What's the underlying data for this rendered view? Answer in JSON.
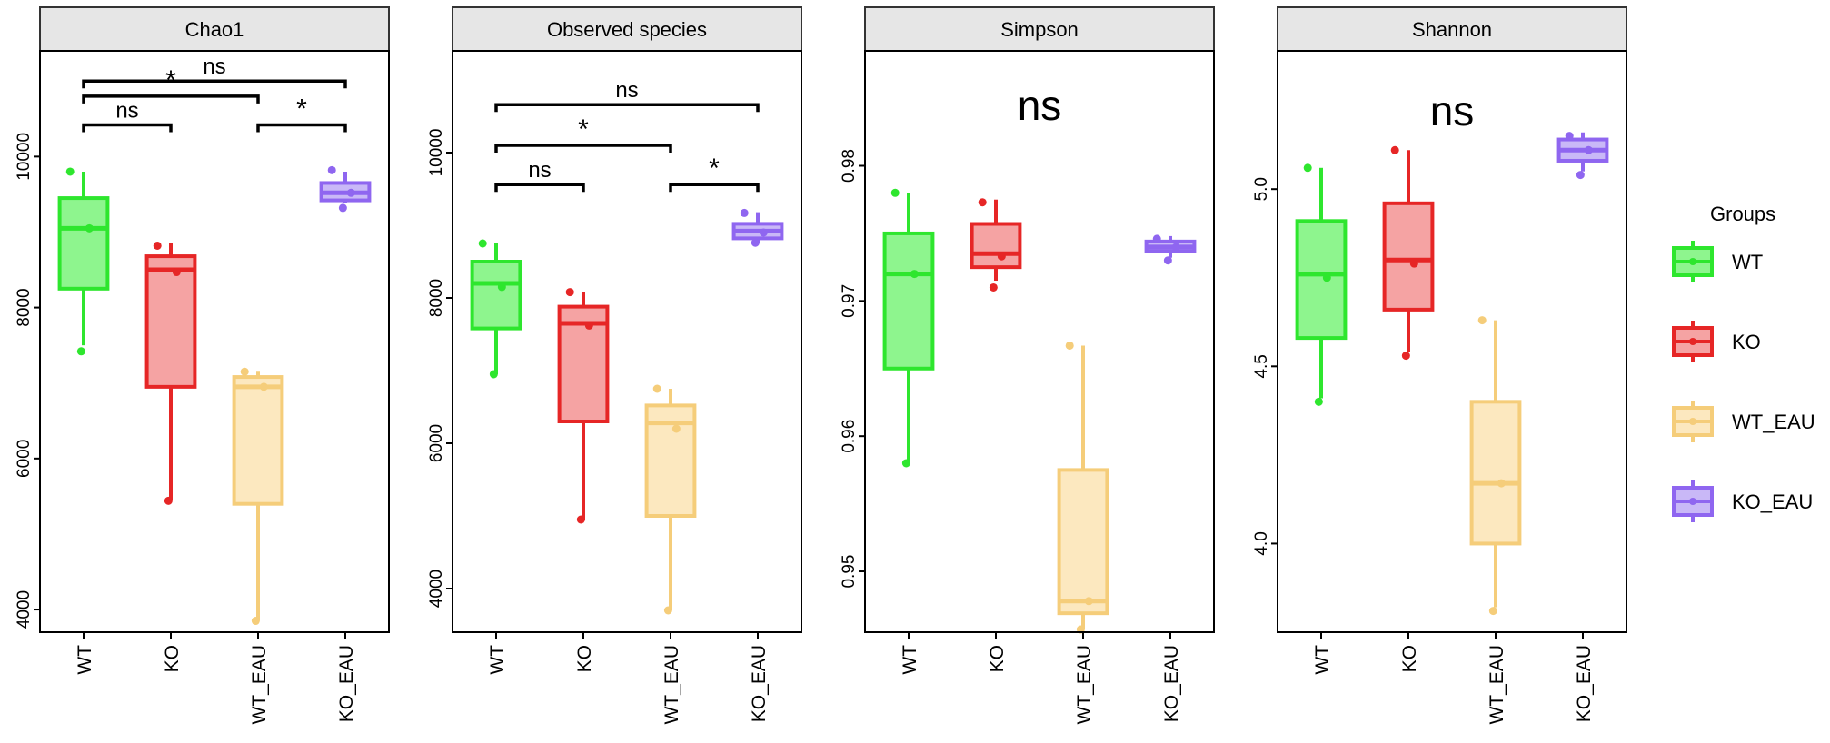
{
  "legend": {
    "title": "Groups",
    "items": [
      {
        "label": "WT",
        "stroke": "#2ee62e",
        "fill": "#8ef58e"
      },
      {
        "label": "KO",
        "stroke": "#e62626",
        "fill": "#f5a3a3"
      },
      {
        "label": "WT_EAU",
        "stroke": "#f5cd7a",
        "fill": "#fce8bf"
      },
      {
        "label": "KO_EAU",
        "stroke": "#8f66f0",
        "fill": "#c9b8f7"
      }
    ]
  },
  "chart_data": [
    {
      "type": "box",
      "title": "Chao1",
      "categories": [
        "WT",
        "KO",
        "WT_EAU",
        "KO_EAU"
      ],
      "ylim": [
        3700,
        11400
      ],
      "yticks": [
        4000,
        6000,
        8000,
        10000
      ],
      "series": [
        {
          "name": "WT",
          "min": 7500,
          "q1": 8250,
          "median": 9050,
          "q3": 9450,
          "max": 9800,
          "points": [
            9800,
            9050,
            7420
          ]
        },
        {
          "name": "KO",
          "min": 5450,
          "q1": 6950,
          "median": 8500,
          "q3": 8680,
          "max": 8850,
          "points": [
            8820,
            8470,
            5440
          ]
        },
        {
          "name": "WT_EAU",
          "min": 3850,
          "q1": 5400,
          "median": 6950,
          "q3": 7080,
          "max": 7150,
          "points": [
            7150,
            6950,
            3850
          ]
        },
        {
          "name": "KO_EAU",
          "min": 9380,
          "q1": 9420,
          "median": 9520,
          "q3": 9650,
          "max": 9800,
          "points": [
            9820,
            9520,
            9320
          ]
        }
      ],
      "brackets": [
        {
          "from": "WT",
          "to": "KO_EAU",
          "label": "ns",
          "y": 11000
        },
        {
          "from": "WT",
          "to": "WT_EAU",
          "label": "*",
          "y": 10800
        },
        {
          "from": "WT",
          "to": "KO",
          "label": "ns",
          "y": 10420
        },
        {
          "from": "WT_EAU",
          "to": "KO_EAU",
          "label": "*",
          "y": 10420
        }
      ]
    },
    {
      "type": "box",
      "title": "Observed species",
      "categories": [
        "WT",
        "KO",
        "WT_EAU",
        "KO_EAU"
      ],
      "ylim": [
        3400,
        11400
      ],
      "yticks": [
        4000,
        6000,
        8000,
        10000
      ],
      "series": [
        {
          "name": "WT",
          "min": 6950,
          "q1": 7580,
          "median": 8200,
          "q3": 8500,
          "max": 8750,
          "points": [
            8750,
            8150,
            6950
          ]
        },
        {
          "name": "KO",
          "min": 4950,
          "q1": 6300,
          "median": 7650,
          "q3": 7880,
          "max": 8080,
          "points": [
            8080,
            7620,
            4950
          ]
        },
        {
          "name": "WT_EAU",
          "min": 3700,
          "q1": 5000,
          "median": 6280,
          "q3": 6520,
          "max": 6750,
          "points": [
            6750,
            6200,
            3700
          ]
        },
        {
          "name": "KO_EAU",
          "min": 8760,
          "q1": 8820,
          "median": 8920,
          "q3": 9020,
          "max": 9180,
          "points": [
            9170,
            8900,
            8760
          ]
        }
      ],
      "brackets": [
        {
          "from": "WT",
          "to": "KO_EAU",
          "label": "ns",
          "y": 10660
        },
        {
          "from": "WT",
          "to": "WT_EAU",
          "label": "*",
          "y": 10100
        },
        {
          "from": "WT",
          "to": "KO",
          "label": "ns",
          "y": 9560
        },
        {
          "from": "WT_EAU",
          "to": "KO_EAU",
          "label": "*",
          "y": 9560
        }
      ]
    },
    {
      "type": "box",
      "title": "Simpson",
      "categories": [
        "WT",
        "KO",
        "WT_EAU",
        "KO_EAU"
      ],
      "ylim": [
        0.9455,
        0.9885
      ],
      "yticks": [
        0.95,
        0.96,
        0.97,
        0.98
      ],
      "annotation": "ns",
      "series": [
        {
          "name": "WT",
          "min": 0.958,
          "q1": 0.965,
          "median": 0.972,
          "q3": 0.975,
          "max": 0.978,
          "points": [
            0.978,
            0.972,
            0.958
          ]
        },
        {
          "name": "KO",
          "min": 0.9715,
          "q1": 0.9725,
          "median": 0.9735,
          "q3": 0.9757,
          "max": 0.9775,
          "points": [
            0.9773,
            0.9733,
            0.971
          ]
        },
        {
          "name": "WT_EAU",
          "min": 0.9457,
          "q1": 0.9469,
          "median": 0.9478,
          "q3": 0.9575,
          "max": 0.9667,
          "points": [
            0.9667,
            0.9478,
            0.9457
          ]
        },
        {
          "name": "KO_EAU",
          "min": 0.9732,
          "q1": 0.9737,
          "median": 0.974,
          "q3": 0.9744,
          "max": 0.9748,
          "points": [
            0.9746,
            0.974,
            0.973
          ]
        }
      ]
    },
    {
      "type": "box",
      "title": "Shannon",
      "categories": [
        "WT",
        "KO",
        "WT_EAU",
        "KO_EAU"
      ],
      "ylim": [
        3.75,
        5.39
      ],
      "yticks": [
        4.0,
        4.5,
        5.0
      ],
      "annotation": "ns",
      "series": [
        {
          "name": "WT",
          "min": 4.41,
          "q1": 4.58,
          "median": 4.76,
          "q3": 4.91,
          "max": 5.06,
          "points": [
            5.06,
            4.75,
            4.4
          ]
        },
        {
          "name": "KO",
          "min": 4.54,
          "q1": 4.66,
          "median": 4.8,
          "q3": 4.96,
          "max": 5.11,
          "points": [
            5.11,
            4.79,
            4.53
          ]
        },
        {
          "name": "WT_EAU",
          "min": 3.82,
          "q1": 4.0,
          "median": 4.17,
          "q3": 4.4,
          "max": 4.63,
          "points": [
            4.63,
            4.17,
            3.81
          ]
        },
        {
          "name": "KO_EAU",
          "min": 5.05,
          "q1": 5.08,
          "median": 5.11,
          "q3": 5.14,
          "max": 5.16,
          "points": [
            5.15,
            5.11,
            5.04
          ]
        }
      ]
    }
  ]
}
